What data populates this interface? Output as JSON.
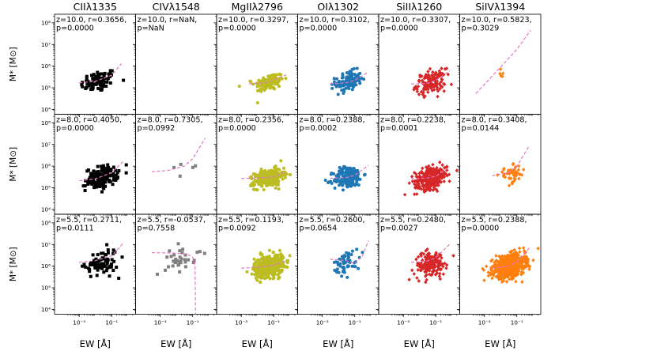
{
  "figure": {
    "ylabel": "M* [M⊙]",
    "xlabel": "EW [Å]",
    "y_tick_labels": [
      "10⁴",
      "10⁵",
      "10⁶",
      "10⁷",
      "10⁸"
    ],
    "x_tick_labels": [
      "10⁻³",
      "10⁻¹"
    ],
    "columns": [
      "CIIλ1335",
      "CIVλ1548",
      "MgIIλ2796",
      "OIλ1302",
      "SiIIλ1260",
      "SiIVλ1394"
    ],
    "rows": [
      "z=10.0",
      "z=8.0",
      "z=5.5"
    ]
  },
  "chart_data": {
    "type": "scatter",
    "xscale": "log",
    "yscale": "log",
    "xlim": [
      3e-05,
      3.0
    ],
    "ylim": [
      6000,
      250000000
    ],
    "fit_line_color": "#e377c2",
    "series_colors": {
      "CIIλ1335": "#000000",
      "CIVλ1548": "#808080",
      "MgIIλ2796": "#bcbd22",
      "OIλ1302": "#1f77b4",
      "SiIIλ1260": "#d62728",
      "SiIVλ1394": "#ff7f0e"
    },
    "series_markers": {
      "CIIλ1335": "square",
      "CIVλ1548": "square",
      "MgIIλ2796": "circle",
      "OIλ1302": "circle",
      "SiIIλ1260": "diamond",
      "SiIVλ1394": "diamond"
    },
    "panels": [
      {
        "row": 0,
        "col": 0,
        "ion": "CIIλ1335",
        "annotation": [
          "z=10.0, r=0.3656,",
          "p=0.0000"
        ],
        "n": 80,
        "x_logmu": -1.8,
        "x_logsd": 0.55,
        "y_logmu": 5.3,
        "y_logsd": 0.25,
        "fit": [
          [
            0.001,
            170000
          ],
          [
            0.01,
            200000
          ],
          [
            0.1,
            380000
          ],
          [
            0.4,
            1300000
          ]
        ]
      },
      {
        "row": 0,
        "col": 1,
        "ion": "CIVλ1548",
        "annotation": [
          "z=10.0, r=NaN,",
          "p=NaN"
        ],
        "n": 0,
        "fit": []
      },
      {
        "row": 0,
        "col": 2,
        "ion": "MgIIλ2796",
        "annotation": [
          "z=10.0, r=0.3297,",
          "p=0.0000"
        ],
        "n": 120,
        "x_logmu": -1.3,
        "x_logsd": 0.45,
        "y_logmu": 5.25,
        "y_logsd": 0.2,
        "fit": [
          [
            0.003,
            150000
          ],
          [
            0.03,
            170000
          ],
          [
            0.1,
            230000
          ],
          [
            0.6,
            400000
          ]
        ]
      },
      {
        "row": 0,
        "col": 3,
        "ion": "OIλ1302",
        "annotation": [
          "z=10.0, r=0.3102,",
          "p=0.0000"
        ],
        "n": 130,
        "x_logmu": -1.4,
        "x_logsd": 0.4,
        "y_logmu": 5.3,
        "y_logsd": 0.22,
        "fit": [
          [
            0.003,
            150000
          ],
          [
            0.03,
            170000
          ],
          [
            0.1,
            220000
          ],
          [
            0.7,
            550000
          ]
        ]
      },
      {
        "row": 0,
        "col": 4,
        "ion": "SiIIλ1260",
        "annotation": [
          "z=10.0, r=0.3307,",
          "p=0.0000"
        ],
        "n": 140,
        "x_logmu": -1.3,
        "x_logsd": 0.45,
        "y_logmu": 5.25,
        "y_logsd": 0.25,
        "fit": [
          [
            0.003,
            150000
          ],
          [
            0.03,
            160000
          ],
          [
            0.1,
            220000
          ],
          [
            0.7,
            600000
          ]
        ]
      },
      {
        "row": 0,
        "col": 5,
        "ion": "SiIVλ1394",
        "annotation": [
          "z=10.0, r=0.5823,",
          "p=0.3029"
        ],
        "n": 5,
        "x_logmu": -1.9,
        "x_logsd": 0.15,
        "y_logmu": 5.6,
        "y_logsd": 0.15,
        "fit": [
          [
            0.0003,
            55000
          ],
          [
            0.01,
            900000
          ],
          [
            0.1,
            6000000
          ],
          [
            0.7,
            45000000
          ]
        ]
      },
      {
        "row": 1,
        "col": 0,
        "ion": "CIIλ1335",
        "annotation": [
          "z=8.0, r=0.4050,",
          "p=0.0000"
        ],
        "n": 150,
        "x_logmu": -1.6,
        "x_logsd": 0.5,
        "y_logmu": 5.5,
        "y_logsd": 0.25,
        "fit": [
          [
            0.001,
            210000
          ],
          [
            0.01,
            260000
          ],
          [
            0.1,
            500000
          ],
          [
            0.5,
            1600000
          ]
        ]
      },
      {
        "row": 1,
        "col": 1,
        "ion": "CIVλ1548",
        "annotation": [
          "z=8.0, r=0.7305,",
          "p=0.0992"
        ],
        "n": 5,
        "x_logmu": -1.6,
        "x_logsd": 0.35,
        "y_logmu": 5.95,
        "y_logsd": 0.1,
        "fit": [
          [
            0.0003,
            560000
          ],
          [
            0.003,
            630000
          ],
          [
            0.03,
            1000000
          ],
          [
            0.1,
            2200000
          ],
          [
            0.6,
            20000000
          ]
        ]
      },
      {
        "row": 1,
        "col": 2,
        "ion": "MgIIλ2796",
        "annotation": [
          "z=8.0, r=0.2356,",
          "p=0.0000"
        ],
        "n": 280,
        "x_logmu": -1.3,
        "x_logsd": 0.45,
        "y_logmu": 5.45,
        "y_logsd": 0.2,
        "fit": [
          [
            0.001,
            270000
          ],
          [
            0.01,
            280000
          ],
          [
            0.1,
            320000
          ],
          [
            0.6,
            560000
          ]
        ]
      },
      {
        "row": 1,
        "col": 3,
        "ion": "OIλ1302",
        "annotation": [
          "z=8.0, r=0.2388,",
          "p=0.0002"
        ],
        "n": 180,
        "x_logmu": -1.4,
        "x_logsd": 0.45,
        "y_logmu": 5.5,
        "y_logsd": 0.25,
        "fit": [
          [
            0.003,
            270000
          ],
          [
            0.03,
            300000
          ],
          [
            0.1,
            380000
          ],
          [
            0.7,
            1100000
          ]
        ]
      },
      {
        "row": 1,
        "col": 4,
        "ion": "SiIIλ1260",
        "annotation": [
          "z=8.0, r=0.2238,",
          "p=0.0001"
        ],
        "n": 280,
        "x_logmu": -1.3,
        "x_logsd": 0.5,
        "y_logmu": 5.45,
        "y_logsd": 0.25,
        "fit": [
          [
            0.003,
            260000
          ],
          [
            0.03,
            280000
          ],
          [
            0.1,
            340000
          ],
          [
            0.7,
            900000
          ]
        ]
      },
      {
        "row": 1,
        "col": 5,
        "ion": "SiIVλ1394",
        "annotation": [
          "z=8.0, r=0.3408,",
          "p=0.0144"
        ],
        "n": 50,
        "x_logmu": -1.3,
        "x_logsd": 0.4,
        "y_logmu": 5.6,
        "y_logsd": 0.2,
        "fit": [
          [
            0.003,
            360000
          ],
          [
            0.03,
            500000
          ],
          [
            0.1,
            1000000
          ],
          [
            0.6,
            9000000
          ]
        ]
      },
      {
        "row": 2,
        "col": 0,
        "ion": "CIIλ1335",
        "annotation": [
          "z=5.5, r=0.2711,",
          "p=0.0111"
        ],
        "n": 80,
        "x_logmu": -1.6,
        "x_logsd": 0.5,
        "y_logmu": 6.15,
        "y_logsd": 0.3,
        "fit": [
          [
            0.001,
            1500000
          ],
          [
            0.01,
            1800000
          ],
          [
            0.1,
            3000000
          ],
          [
            0.5,
            11000000
          ]
        ]
      },
      {
        "row": 2,
        "col": 1,
        "ion": "CIVλ1548",
        "annotation": [
          "z=5.5, r=-0.0537,",
          "p=0.7558"
        ],
        "n": 35,
        "x_logmu": -1.7,
        "x_logsd": 0.5,
        "y_logmu": 6.4,
        "y_logsd": 0.3,
        "fit": [
          [
            0.0003,
            4200000
          ],
          [
            0.01,
            4000000
          ],
          [
            0.05,
            3500000
          ],
          [
            0.1,
            2600000
          ],
          [
            0.14,
            1500000
          ],
          [
            0.15,
            6000
          ]
        ]
      },
      {
        "row": 2,
        "col": 2,
        "ion": "MgIIλ2796",
        "annotation": [
          "z=5.5, r=0.1193,",
          "p=0.0092"
        ],
        "n": 450,
        "x_logmu": -1.3,
        "x_logsd": 0.45,
        "y_logmu": 6.0,
        "y_logsd": 0.25,
        "fit": [
          [
            0.001,
            800000
          ],
          [
            0.01,
            900000
          ],
          [
            0.1,
            1100000
          ],
          [
            0.6,
            1800000
          ]
        ]
      },
      {
        "row": 2,
        "col": 3,
        "ion": "OIλ1302",
        "annotation": [
          "z=5.5, r=0.2600,",
          "p=0.0654"
        ],
        "n": 55,
        "x_logmu": -1.5,
        "x_logsd": 0.4,
        "y_logmu": 6.2,
        "y_logsd": 0.25,
        "fit": [
          [
            0.003,
            2100000
          ],
          [
            0.03,
            1800000
          ],
          [
            0.1,
            1300000
          ],
          [
            0.3,
            3000000
          ],
          [
            0.7,
            15000000
          ]
        ]
      },
      {
        "row": 2,
        "col": 4,
        "ion": "SiIIλ1260",
        "annotation": [
          "z=5.5, r=0.2480,",
          "p=0.0027"
        ],
        "n": 160,
        "x_logmu": -1.3,
        "x_logsd": 0.5,
        "y_logmu": 6.1,
        "y_logsd": 0.3,
        "fit": [
          [
            0.003,
            1500000
          ],
          [
            0.03,
            1700000
          ],
          [
            0.1,
            2500000
          ],
          [
            0.7,
            10000000
          ]
        ]
      },
      {
        "row": 2,
        "col": 5,
        "ion": "SiIVλ1394",
        "annotation": [
          "z=5.5, r=0.2388,",
          "p=0.0000"
        ],
        "n": 700,
        "x_logmu": -1.5,
        "x_logsd": 0.5,
        "y_logmu": 6.0,
        "y_logsd": 0.25,
        "fit": [
          [
            0.003,
            800000
          ],
          [
            0.03,
            1000000
          ],
          [
            0.1,
            1600000
          ],
          [
            0.7,
            8000000
          ]
        ]
      }
    ]
  }
}
